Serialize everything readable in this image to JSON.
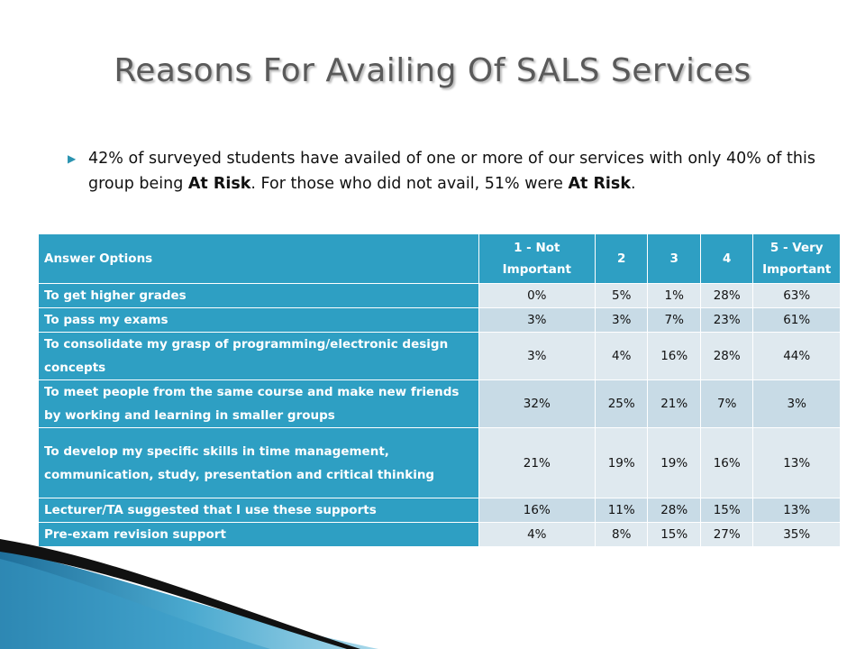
{
  "title": "Reasons For Availing Of SALS Services",
  "bullet": {
    "part1": "42% of surveyed students have availed of one or more of our services with only 40% of this group being ",
    "bold1": "At Risk",
    "part2": ". For those who did not avail, 51% were ",
    "bold2": "At Risk",
    "part3": "."
  },
  "table": {
    "headers": [
      "Answer Options",
      "1 - Not Important",
      "2",
      "3",
      "4",
      "5 - Very Important"
    ],
    "rows": [
      {
        "label": "To get higher grades",
        "values": [
          "0%",
          "5%",
          "1%",
          "28%",
          "63%"
        ]
      },
      {
        "label": "To pass my exams",
        "values": [
          "3%",
          "3%",
          "7%",
          "23%",
          "61%"
        ]
      },
      {
        "label": "To consolidate my grasp of programming/electronic design concepts",
        "values": [
          "3%",
          "4%",
          "16%",
          "28%",
          "44%"
        ]
      },
      {
        "label": "To meet people from the same course and make new friends by working and learning in smaller groups",
        "values": [
          "32%",
          "25%",
          "21%",
          "7%",
          "3%"
        ]
      },
      {
        "label": "To develop my specific skills in time management, communication, study, presentation and critical thinking",
        "values": [
          "21%",
          "19%",
          "19%",
          "16%",
          "13%"
        ]
      },
      {
        "label": "Lecturer/TA suggested that I use these supports",
        "values": [
          "16%",
          "11%",
          "28%",
          "15%",
          "13%"
        ]
      },
      {
        "label": "Pre-exam revision support",
        "values": [
          "4%",
          "8%",
          "15%",
          "27%",
          "35%"
        ]
      }
    ]
  }
}
